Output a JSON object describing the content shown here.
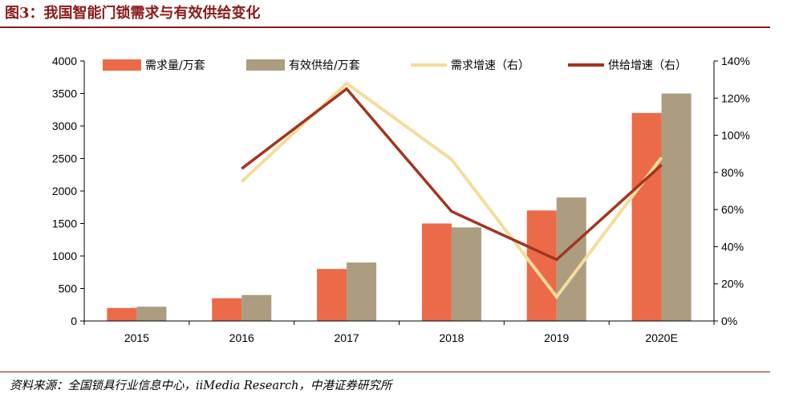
{
  "header": {
    "title": "图3：我国智能门锁需求与有效供给变化"
  },
  "footer": {
    "source": "资料来源：全国锁具行业信息中心，iiMedia Research，中港证券研究所"
  },
  "chart_data": {
    "type": "bar",
    "title": "",
    "categories": [
      "2015",
      "2016",
      "2017",
      "2018",
      "2019",
      "2020E"
    ],
    "series": [
      {
        "name": "需求量/万套",
        "type": "bar",
        "axis": "left",
        "color": "#ec6a47",
        "values": [
          200,
          350,
          800,
          1500,
          1700,
          3200
        ]
      },
      {
        "name": "有效供给/万套",
        "type": "bar",
        "axis": "left",
        "color": "#ac9c80",
        "values": [
          220,
          400,
          900,
          1440,
          1900,
          3500
        ]
      },
      {
        "name": "需求增速（右）",
        "type": "line",
        "axis": "right",
        "color": "#f3dd99",
        "values": [
          null,
          0.75,
          1.28,
          0.87,
          0.13,
          0.88
        ]
      },
      {
        "name": "供给增速（右）",
        "type": "line",
        "axis": "right",
        "color": "#a4341f",
        "values": [
          null,
          0.82,
          1.25,
          0.59,
          0.33,
          0.84
        ]
      }
    ],
    "y_left": {
      "min": 0,
      "max": 4000,
      "step": 500,
      "ticks": [
        "0",
        "500",
        "1000",
        "1500",
        "2000",
        "2500",
        "3000",
        "3500",
        "4000"
      ]
    },
    "y_right": {
      "min": 0,
      "max": 1.4,
      "step": 0.2,
      "ticks": [
        "0%",
        "20%",
        "40%",
        "60%",
        "80%",
        "100%",
        "120%",
        "140%"
      ]
    },
    "grid": false,
    "legend_position": "top"
  }
}
